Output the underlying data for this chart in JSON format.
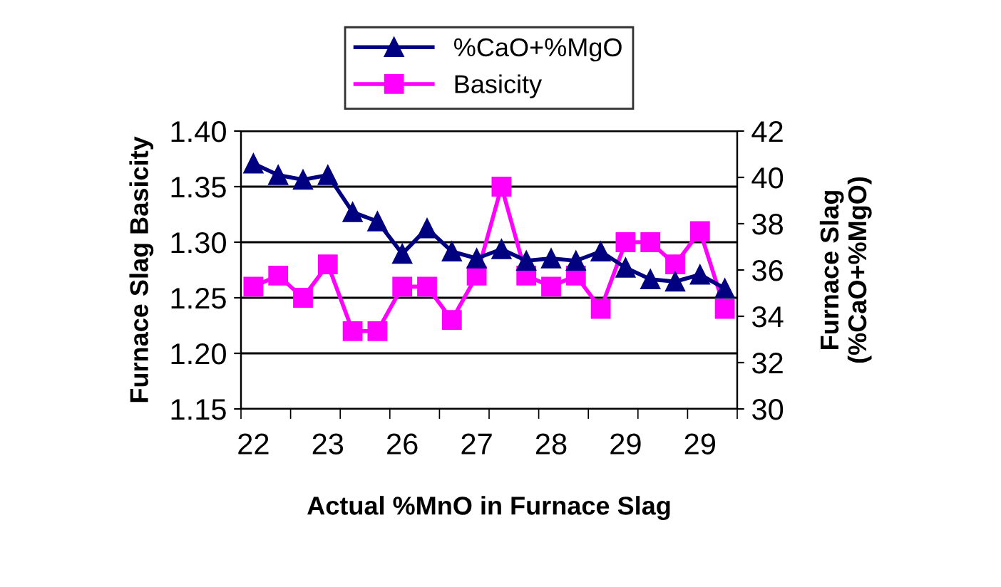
{
  "chart_data": {
    "type": "line",
    "xlabel": "Actual %MnO in Furnace Slag",
    "ylabel": "Furnace Slag Basicity",
    "y2label": "Furnace Slag\n(%CaO+%MgO)",
    "categories": [
      "22",
      null,
      null,
      "23",
      null,
      null,
      "26",
      null,
      null,
      "27",
      null,
      null,
      "28",
      null,
      null,
      "29",
      null,
      null,
      "29",
      null
    ],
    "series": [
      {
        "name": "%CaO+%MgO",
        "color": "#000080",
        "marker": "triangle",
        "axis": "y2",
        "values": [
          40.6,
          40.1,
          39.9,
          40.1,
          38.5,
          38.1,
          36.7,
          37.8,
          36.8,
          36.5,
          36.9,
          36.4,
          36.5,
          36.4,
          36.8,
          36.1,
          35.6,
          35.5,
          35.8,
          35.2
        ]
      },
      {
        "name": "Basicity",
        "color": "#ff00ff",
        "marker": "square",
        "values": [
          1.26,
          1.27,
          1.25,
          1.28,
          1.22,
          1.22,
          1.26,
          1.26,
          1.23,
          1.27,
          1.35,
          1.27,
          1.26,
          1.27,
          1.24,
          1.3,
          1.3,
          1.28,
          1.31,
          1.24
        ]
      }
    ],
    "ylim": [
      1.15,
      1.4
    ],
    "yticks": [
      {
        "value": 1.15,
        "label": "1.15"
      },
      {
        "value": 1.2,
        "label": "1.20"
      },
      {
        "value": 1.25,
        "label": "1.25"
      },
      {
        "value": 1.3,
        "label": "1.30"
      },
      {
        "value": 1.35,
        "label": "1.35"
      },
      {
        "value": 1.4,
        "label": "1.40"
      }
    ],
    "y2lim": [
      30,
      42
    ],
    "y2ticks": [
      30,
      32,
      34,
      36,
      38,
      40,
      42
    ],
    "grid": "y",
    "legend": "top",
    "line_style": "solid"
  }
}
